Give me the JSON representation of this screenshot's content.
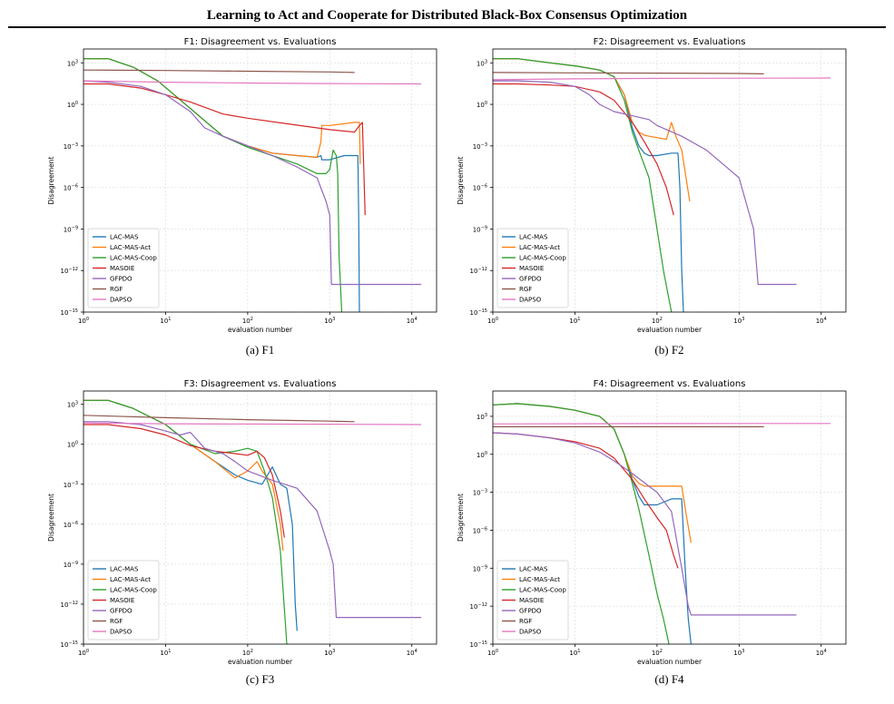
{
  "paper": {
    "running_title": "Learning to Act and Cooperate for Distributed Black-Box Consensus Optimization"
  },
  "colors": {
    "LAC-MAS": "#1f77b4",
    "LAC-MAS-Act": "#ff7f0e",
    "LAC-MAS-Coop": "#2ca02c",
    "MASOIE": "#d62728",
    "GFPDO": "#9467bd",
    "RGF": "#8c564b",
    "DAPSO": "#e377c2"
  },
  "chart_data": [
    {
      "id": "F1",
      "type": "line",
      "title": "F1: Disagreement vs. Evaluations",
      "caption": "(a) F1",
      "xlabel": "evaluation number",
      "ylabel": "Disagreement",
      "x_scale": "log",
      "y_scale": "log",
      "xlim": [
        1,
        20000
      ],
      "ylim": [
        1e-15,
        10000.0
      ],
      "grid": true,
      "legend_position": "lower-left",
      "x_ticks": [
        "10^0",
        "10^1",
        "10^2",
        "10^3",
        "10^4"
      ],
      "y_ticks": [
        "10^-15",
        "10^-12",
        "10^-9",
        "10^-6",
        "10^-3",
        "10^0",
        "10^3"
      ],
      "series": [
        {
          "name": "LAC-MAS",
          "x": [
            1,
            2,
            4,
            8,
            20,
            50,
            100,
            200,
            400,
            700,
            780,
            800,
            1000,
            1500,
            2000,
            2200,
            2250,
            2300
          ],
          "y": [
            2000,
            2000,
            500,
            50,
            0.5,
            0.005,
            0.001,
            0.0003,
            0.0002,
            0.00015,
            0.0002,
            0.0001,
            0.0001,
            0.0002,
            0.0002,
            0.0002,
            1e-08,
            1e-15
          ]
        },
        {
          "name": "LAC-MAS-Act",
          "x": [
            1,
            2,
            4,
            8,
            20,
            50,
            100,
            200,
            400,
            700,
            780,
            800,
            1000,
            1500,
            2000,
            2200,
            2300,
            2350
          ],
          "y": [
            2000,
            2000,
            500,
            50,
            0.5,
            0.005,
            0.001,
            0.0003,
            0.0002,
            0.00015,
            0.002,
            0.03,
            0.03,
            0.04,
            0.05,
            0.05,
            0.05,
            5e-05
          ]
        },
        {
          "name": "LAC-MAS-Coop",
          "x": [
            1,
            2,
            4,
            8,
            20,
            50,
            100,
            200,
            400,
            700,
            900,
            1000,
            1100,
            1200,
            1250,
            1300,
            1350,
            1400
          ],
          "y": [
            2000,
            2000,
            500,
            50,
            0.5,
            0.005,
            0.0008,
            0.0002,
            5e-05,
            1e-05,
            1e-05,
            2e-05,
            0.0005,
            0.0002,
            1e-05,
            1e-11,
            1e-13,
            1e-15
          ]
        },
        {
          "name": "MASOIE",
          "x": [
            1,
            2,
            5,
            10,
            20,
            50,
            100,
            300,
            1000,
            2000,
            2300,
            2500,
            2700
          ],
          "y": [
            30,
            30,
            15,
            5,
            1.5,
            0.2,
            0.1,
            0.04,
            0.015,
            0.01,
            0.03,
            0.05,
            1e-08
          ]
        },
        {
          "name": "GFPDO",
          "x": [
            1,
            2,
            5,
            10,
            20,
            30,
            50,
            100,
            200,
            400,
            700,
            900,
            1000,
            1050,
            1100,
            2000,
            5000,
            13000
          ],
          "y": [
            50,
            40,
            20,
            5,
            0.3,
            0.02,
            0.005,
            0.001,
            0.0002,
            3e-05,
            5e-06,
            1e-07,
            1e-08,
            1e-13,
            1e-13,
            1e-13,
            1e-13,
            1e-13
          ]
        },
        {
          "name": "RGF",
          "x": [
            1,
            10,
            100,
            1000,
            2000
          ],
          "y": [
            300,
            280,
            250,
            220,
            200
          ]
        },
        {
          "name": "DAPSO",
          "x": [
            1,
            10,
            100,
            1000,
            13000
          ],
          "y": [
            50,
            40,
            35,
            32,
            30
          ]
        }
      ]
    },
    {
      "id": "F2",
      "type": "line",
      "title": "F2: Disagreement vs. Evaluations",
      "caption": "(b) F2",
      "xlabel": "evaluation number",
      "ylabel": "Disagreement",
      "x_scale": "log",
      "y_scale": "log",
      "xlim": [
        1,
        20000
      ],
      "ylim": [
        1e-15,
        10000.0
      ],
      "grid": true,
      "legend_position": "lower-left",
      "x_ticks": [
        "10^0",
        "10^1",
        "10^2",
        "10^3",
        "10^4"
      ],
      "y_ticks": [
        "10^-15",
        "10^-12",
        "10^-9",
        "10^-6",
        "10^-3",
        "10^0",
        "10^3"
      ],
      "series": [
        {
          "name": "LAC-MAS",
          "x": [
            1,
            2,
            5,
            10,
            20,
            30,
            40,
            50,
            60,
            70,
            80,
            100,
            150,
            180,
            190,
            200,
            210
          ],
          "y": [
            2000,
            2000,
            1000,
            600,
            300,
            100,
            5,
            0.02,
            0.001,
            0.0003,
            0.0002,
            0.0002,
            0.0003,
            0.0003,
            1e-06,
            1e-12,
            1e-15
          ]
        },
        {
          "name": "LAC-MAS-Act",
          "x": [
            1,
            2,
            5,
            10,
            20,
            30,
            40,
            50,
            60,
            70,
            80,
            100,
            130,
            150,
            170,
            200,
            250
          ],
          "y": [
            2000,
            2000,
            1000,
            600,
            300,
            100,
            5,
            0.05,
            0.01,
            0.006,
            0.005,
            0.004,
            0.003,
            0.05,
            0.005,
            0.0005,
            1e-07
          ]
        },
        {
          "name": "LAC-MAS-Coop",
          "x": [
            1,
            2,
            5,
            10,
            20,
            30,
            40,
            50,
            60,
            80,
            100,
            120,
            150
          ],
          "y": [
            2000,
            2000,
            1000,
            600,
            300,
            100,
            2,
            0.01,
            0.0005,
            5e-06,
            1e-09,
            1e-12,
            1e-15
          ]
        },
        {
          "name": "MASOIE",
          "x": [
            1,
            2,
            5,
            10,
            20,
            30,
            50,
            70,
            100,
            130,
            160
          ],
          "y": [
            30,
            30,
            25,
            20,
            8,
            2,
            0.05,
            0.002,
            5e-05,
            1e-06,
            1e-08
          ]
        },
        {
          "name": "GFPDO",
          "x": [
            1,
            2,
            5,
            10,
            15,
            20,
            30,
            50,
            80,
            100,
            200,
            400,
            700,
            1000,
            1500,
            1700,
            1800,
            5000
          ],
          "y": [
            50,
            50,
            40,
            20,
            5,
            1,
            0.3,
            0.15,
            0.08,
            0.03,
            0.005,
            0.0005,
            3e-05,
            5e-06,
            1e-09,
            1e-13,
            1e-13,
            1e-13
          ]
        },
        {
          "name": "RGF",
          "x": [
            1,
            10,
            100,
            1000,
            2000
          ],
          "y": [
            200,
            190,
            180,
            170,
            160
          ]
        },
        {
          "name": "DAPSO",
          "x": [
            1,
            10,
            100,
            1000,
            13000
          ],
          "y": [
            60,
            70,
            75,
            78,
            80
          ]
        }
      ]
    },
    {
      "id": "F3",
      "type": "line",
      "title": "F3: Disagreement vs. Evaluations",
      "caption": "(c) F3",
      "xlabel": "evaluation number",
      "ylabel": "Disagreement",
      "x_scale": "log",
      "y_scale": "log",
      "xlim": [
        1,
        20000
      ],
      "ylim": [
        1e-15,
        10000.0
      ],
      "grid": true,
      "legend_position": "lower-left",
      "x_ticks": [
        "10^0",
        "10^1",
        "10^2",
        "10^3",
        "10^4"
      ],
      "y_ticks": [
        "10^-15",
        "10^-12",
        "10^-9",
        "10^-6",
        "10^-3",
        "10^0",
        "10^3"
      ],
      "series": [
        {
          "name": "LAC-MAS",
          "x": [
            1,
            2,
            4,
            10,
            20,
            40,
            70,
            100,
            150,
            200,
            250,
            300,
            350,
            380,
            400
          ],
          "y": [
            2000,
            2000,
            500,
            30,
            1,
            0.05,
            0.005,
            0.002,
            0.001,
            0.02,
            0.001,
            0.0005,
            1e-06,
            1e-12,
            1e-14
          ]
        },
        {
          "name": "LAC-MAS-Act",
          "x": [
            1,
            2,
            4,
            10,
            20,
            40,
            70,
            100,
            130,
            150,
            200,
            250,
            270
          ],
          "y": [
            2000,
            2000,
            500,
            30,
            1,
            0.05,
            0.003,
            0.01,
            0.05,
            0.01,
            0.001,
            1e-06,
            1e-08
          ]
        },
        {
          "name": "LAC-MAS-Coop",
          "x": [
            1,
            2,
            4,
            10,
            20,
            40,
            70,
            100,
            130,
            160,
            200,
            250,
            300
          ],
          "y": [
            2000,
            2000,
            500,
            30,
            1,
            0.2,
            0.3,
            0.5,
            0.3,
            0.01,
            0.0001,
            1e-08,
            1e-15
          ]
        },
        {
          "name": "MASOIE",
          "x": [
            1,
            2,
            5,
            10,
            20,
            40,
            70,
            100,
            130,
            160,
            200,
            250,
            280
          ],
          "y": [
            30,
            30,
            15,
            5,
            0.8,
            0.3,
            0.2,
            0.15,
            0.3,
            0.1,
            0.005,
            1e-05,
            1e-07
          ]
        },
        {
          "name": "GFPDO",
          "x": [
            1,
            2,
            5,
            10,
            15,
            20,
            30,
            50,
            70,
            100,
            200,
            400,
            700,
            1000,
            1100,
            1200,
            2000,
            13000
          ],
          "y": [
            50,
            50,
            30,
            10,
            5,
            8,
            0.5,
            0.2,
            0.05,
            0.01,
            0.002,
            0.0005,
            1e-05,
            1e-08,
            1e-09,
            1e-13,
            1e-13,
            1e-13
          ]
        },
        {
          "name": "RGF",
          "x": [
            1,
            10,
            100,
            1000,
            2000
          ],
          "y": [
            150,
            100,
            70,
            55,
            50
          ]
        },
        {
          "name": "DAPSO",
          "x": [
            1,
            10,
            100,
            1000,
            13000
          ],
          "y": [
            40,
            35,
            33,
            32,
            30
          ]
        }
      ]
    },
    {
      "id": "F4",
      "type": "line",
      "title": "F4: Disagreement vs. Evaluations",
      "caption": "(d) F4",
      "xlabel": "evaluation number",
      "ylabel": "Disagreement",
      "x_scale": "log",
      "y_scale": "log",
      "xlim": [
        1,
        20000
      ],
      "ylim": [
        1e-15,
        100000.0
      ],
      "grid": true,
      "legend_position": "lower-left",
      "x_ticks": [
        "10^0",
        "10^1",
        "10^2",
        "10^3",
        "10^4"
      ],
      "y_ticks": [
        "10^-15",
        "10^-12",
        "10^-9",
        "10^-6",
        "10^-3",
        "10^0",
        "10^3"
      ],
      "series": [
        {
          "name": "LAC-MAS",
          "x": [
            1,
            2,
            5,
            10,
            20,
            30,
            40,
            50,
            60,
            70,
            100,
            150,
            200,
            220,
            240,
            260
          ],
          "y": [
            8000,
            10000,
            6000,
            3000,
            1000,
            100,
            1,
            0.01,
            0.0005,
            0.0001,
            0.0001,
            0.0003,
            0.0003,
            1e-09,
            1e-13,
            1e-15
          ]
        },
        {
          "name": "LAC-MAS-Act",
          "x": [
            1,
            2,
            5,
            10,
            20,
            30,
            40,
            50,
            60,
            70,
            100,
            150,
            200,
            230,
            260
          ],
          "y": [
            8000,
            10000,
            6000,
            3000,
            1000,
            100,
            1,
            0.02,
            0.005,
            0.003,
            0.003,
            0.003,
            0.003,
            1e-05,
            1e-07
          ]
        },
        {
          "name": "LAC-MAS-Coop",
          "x": [
            1,
            2,
            5,
            10,
            20,
            30,
            40,
            50,
            60,
            80,
            100,
            120,
            140
          ],
          "y": [
            8000,
            10000,
            6000,
            3000,
            1000,
            100,
            1,
            0.005,
            5e-05,
            1e-08,
            1e-11,
            1e-13,
            1e-15
          ]
        },
        {
          "name": "MASOIE",
          "x": [
            1,
            2,
            5,
            10,
            20,
            30,
            50,
            70,
            100,
            130,
            160,
            180
          ],
          "y": [
            50,
            40,
            20,
            10,
            3,
            0.5,
            0.01,
            0.0003,
            1e-05,
            1e-06,
            1e-08,
            1e-09
          ]
        },
        {
          "name": "GFPDO",
          "x": [
            1,
            2,
            5,
            10,
            20,
            30,
            50,
            100,
            150,
            200,
            240,
            260,
            1000,
            5000
          ],
          "y": [
            50,
            40,
            20,
            8,
            1.5,
            0.3,
            0.03,
            0.001,
            3e-05,
            1e-09,
            1e-12,
            2e-13,
            2e-13,
            2e-13
          ]
        },
        {
          "name": "RGF",
          "x": [
            1,
            10,
            100,
            1000,
            2000
          ],
          "y": [
            150,
            150,
            150,
            150,
            150
          ]
        },
        {
          "name": "DAPSO",
          "x": [
            1,
            10,
            100,
            1000,
            13000
          ],
          "y": [
            250,
            260,
            265,
            270,
            270
          ]
        }
      ]
    }
  ]
}
